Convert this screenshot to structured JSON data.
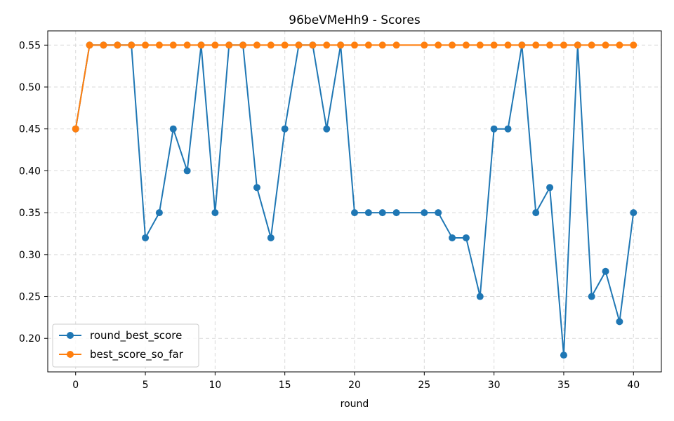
{
  "chart_data": {
    "type": "line",
    "title": "96beVMeHh9 - Scores",
    "xlabel": "round",
    "ylabel": "",
    "xlim": [
      -2,
      42
    ],
    "ylim": [
      0.16,
      0.567
    ],
    "xticks": [
      0,
      5,
      10,
      15,
      20,
      25,
      30,
      35,
      40
    ],
    "yticks": [
      0.2,
      0.25,
      0.3,
      0.35,
      0.4,
      0.45,
      0.5,
      0.55
    ],
    "ytick_labels": [
      "0.20",
      "0.25",
      "0.30",
      "0.35",
      "0.40",
      "0.45",
      "0.50",
      "0.55"
    ],
    "grid": true,
    "legend_position": "lower-left",
    "series": [
      {
        "name": "round_best_score",
        "color": "#1f77b4",
        "x": [
          0,
          1,
          2,
          3,
          4,
          5,
          6,
          7,
          8,
          9,
          10,
          11,
          12,
          13,
          14,
          15,
          16,
          17,
          18,
          19,
          20,
          21,
          22,
          23,
          25,
          26,
          27,
          28,
          29,
          30,
          31,
          32,
          33,
          34,
          35,
          36,
          37,
          38,
          39,
          40
        ],
        "y": [
          0.45,
          0.55,
          0.55,
          0.55,
          0.55,
          0.32,
          0.35,
          0.45,
          0.4,
          0.55,
          0.35,
          0.55,
          0.55,
          0.38,
          0.32,
          0.45,
          0.55,
          0.55,
          0.45,
          0.55,
          0.35,
          0.35,
          0.35,
          0.35,
          0.35,
          0.35,
          0.32,
          0.32,
          0.25,
          0.45,
          0.45,
          0.55,
          0.35,
          0.38,
          0.18,
          0.55,
          0.25,
          0.28,
          0.22,
          0.35
        ]
      },
      {
        "name": "best_score_so_far",
        "color": "#ff7f0e",
        "x": [
          0,
          1,
          2,
          3,
          4,
          5,
          6,
          7,
          8,
          9,
          10,
          11,
          12,
          13,
          14,
          15,
          16,
          17,
          18,
          19,
          20,
          21,
          22,
          23,
          25,
          26,
          27,
          28,
          29,
          30,
          31,
          32,
          33,
          34,
          35,
          36,
          37,
          38,
          39,
          40
        ],
        "y": [
          0.45,
          0.55,
          0.55,
          0.55,
          0.55,
          0.55,
          0.55,
          0.55,
          0.55,
          0.55,
          0.55,
          0.55,
          0.55,
          0.55,
          0.55,
          0.55,
          0.55,
          0.55,
          0.55,
          0.55,
          0.55,
          0.55,
          0.55,
          0.55,
          0.55,
          0.55,
          0.55,
          0.55,
          0.55,
          0.55,
          0.55,
          0.55,
          0.55,
          0.55,
          0.55,
          0.55,
          0.55,
          0.55,
          0.55,
          0.55
        ]
      }
    ]
  }
}
